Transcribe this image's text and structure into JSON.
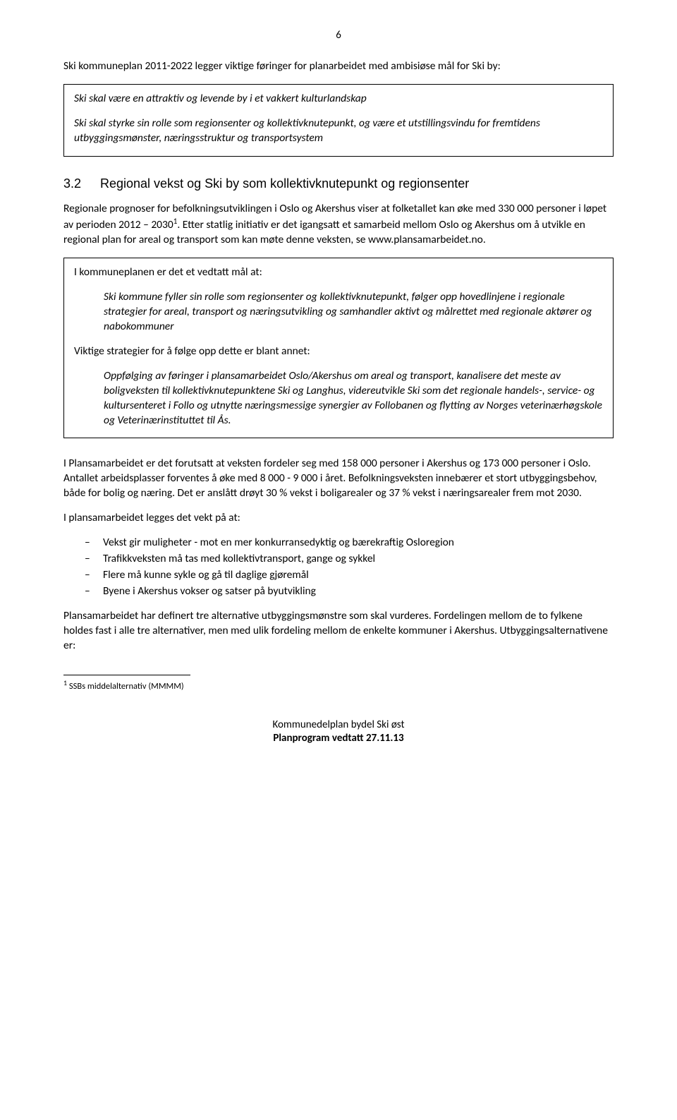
{
  "page_number": "6",
  "intro": "Ski kommuneplan 2011-2022 legger viktige føringer for planarbeidet med ambisiøse mål for Ski by:",
  "box1": {
    "p1": "Ski skal være en attraktiv og levende by i et vakkert kulturlandskap",
    "p2": "Ski skal styrke sin rolle som regionsenter og kollektivknutepunkt, og være et utstillingsvindu for fremtidens utbyggingsmønster, næringsstruktur og transportsystem"
  },
  "heading": {
    "num": "3.2",
    "text": "Regional vekst og Ski by som kollektivknutepunkt og regionsenter"
  },
  "para_after_heading_a": "Regionale prognoser for befolkningsutviklingen i Oslo og Akershus viser at folketallet kan øke med 330 000 personer i løpet av perioden 2012 – 2030",
  "para_after_heading_sup": "1",
  "para_after_heading_b": ". Etter statlig initiativ er det igangsatt et samarbeid mellom Oslo og Akershus om å utvikle en regional plan for areal og transport som kan møte denne veksten, se www.plansamarbeidet.no.",
  "box2": {
    "lead1": "I kommuneplanen er det et vedtatt mål at:",
    "quote1": "Ski kommune fyller sin rolle som regionsenter og kollektivknutepunkt, følger opp hovedlinjene i regionale strategier for areal, transport og næringsutvikling og samhandler aktivt og målrettet med regionale aktører og nabokommuner",
    "lead2": "Viktige strategier for å følge opp dette er blant annet:",
    "quote2": "Oppfølging av føringer i plansamarbeidet Oslo/Akershus om areal og transport, kanalisere det meste av boligveksten til kollektivknutepunktene Ski og Langhus, videreutvikle Ski som det regionale handels-, service- og kultursenteret i Follo og  utnytte næringsmessige synergier av Follobanen og flytting av Norges veterinærhøgskole og Veterinærinstituttet til Ås."
  },
  "para3": "I Plansamarbeidet er det forutsatt at veksten fordeler seg med 158 000 personer i Akershus og 173 000 personer i Oslo. Antallet arbeidsplasser forventes å øke med 8 000 - 9 000 i året. Befolkningsveksten innebærer et stort utbyggingsbehov, både for bolig og næring. Det er anslått drøyt 30 % vekst i boligarealer og 37 % vekst i næringsarealer frem mot 2030.",
  "para4": "I plansamarbeidet legges det vekt på at:",
  "bullets": [
    "Vekst gir muligheter - mot en mer konkurransedyktig og bærekraftig Osloregion",
    "Trafikkveksten må tas med kollektivtransport, gange og sykkel",
    "Flere må kunne sykle og gå til daglige gjøremål",
    "Byene i Akershus vokser og satser på byutvikling"
  ],
  "para5": "Plansamarbeidet har definert tre alternative utbyggingsmønstre som skal vurderes. Fordelingen mellom de to fylkene holdes fast i alle tre alternativer, men med ulik fordeling mellom de enkelte kommuner i Akershus. Utbyggingsalternativene er:",
  "footnote": {
    "marker": "1",
    "text": " SSBs middelalternativ (MMMM)"
  },
  "footer": {
    "line1": "Kommunedelplan bydel Ski øst",
    "line2": "Planprogram vedtatt 27.11.13"
  },
  "colors": {
    "text": "#000000",
    "background": "#ffffff",
    "border": "#000000"
  },
  "typography": {
    "body_font": "Calibri",
    "body_size_pt": 11,
    "heading_font": "Arial",
    "heading_size_pt": 13
  }
}
